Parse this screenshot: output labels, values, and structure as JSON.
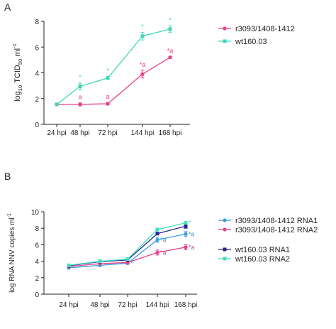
{
  "chart_data": [
    {
      "panel": "A",
      "type": "line",
      "categories": [
        "24 hpi",
        "48 hpi",
        "72 hpi",
        "144 hpi",
        "168 hpi"
      ],
      "ylabel_parts": {
        "pre": "log",
        "sub1": "10",
        "mid": " TCID",
        "sub2": "50",
        "post": " ml",
        "sup": "-1"
      },
      "ylim": [
        0,
        8
      ],
      "yticks": [
        0,
        2,
        4,
        6,
        8
      ],
      "series": [
        {
          "name": "r3093/1408-1412",
          "color": "#e6408a",
          "marker": "circle",
          "values": [
            1.55,
            1.55,
            1.6,
            3.9,
            5.2
          ],
          "errors": [
            0.08,
            0.12,
            0.1,
            0.3,
            0.08
          ],
          "annotations": [
            "",
            "a",
            "a",
            "*a",
            "*a"
          ]
        },
        {
          "name": "wt160.03",
          "color": "#3fd6b8",
          "marker": "square",
          "values": [
            1.55,
            2.95,
            3.6,
            6.85,
            7.4
          ],
          "errors": [
            0.05,
            0.25,
            0.12,
            0.3,
            0.25
          ],
          "annotations": [
            "",
            "*",
            "*",
            "*",
            "*"
          ]
        }
      ]
    },
    {
      "panel": "B",
      "type": "line",
      "categories": [
        "24 hpi",
        "48 hpi",
        "72 hpi",
        "144 hpi",
        "168 hpi"
      ],
      "ylabel_parts": {
        "pre": "log RNA NNV copies ml",
        "sup": "-1"
      },
      "ylim": [
        0,
        10
      ],
      "yticks": [
        0,
        2,
        4,
        6,
        8,
        10
      ],
      "series": [
        {
          "name": "r3093/1408-1412 RNA1",
          "color": "#3a9de0",
          "marker": "circle",
          "values": [
            3.2,
            3.5,
            3.75,
            6.6,
            7.3
          ],
          "errors": [
            0.08,
            0.08,
            0.1,
            0.3,
            0.3
          ],
          "annotations": [
            "",
            "",
            "*",
            "*a",
            "*a"
          ]
        },
        {
          "name": "r3093/1408-1412 RNA2",
          "color": "#e6408a",
          "marker": "circle",
          "values": [
            3.35,
            3.7,
            3.85,
            5.05,
            5.7
          ],
          "errors": [
            0.08,
            0.08,
            0.1,
            0.3,
            0.3
          ],
          "annotations": [
            "",
            "",
            "",
            "*a",
            "*a"
          ]
        },
        {
          "name": "wt160.03 RNA1",
          "color": "#26248a",
          "marker": "square",
          "values": [
            3.45,
            3.95,
            4.15,
            7.35,
            8.25
          ],
          "errors": [
            0.08,
            0.1,
            0.1,
            0.15,
            0.25
          ],
          "annotations": [
            "",
            "",
            "",
            "",
            ""
          ]
        },
        {
          "name": "wt160.03 RNA2",
          "color": "#3fe0c0",
          "marker": "square",
          "values": [
            3.5,
            4.0,
            4.25,
            7.85,
            8.65
          ],
          "errors": [
            0.08,
            0.08,
            0.1,
            0.15,
            0.15
          ],
          "annotations": [
            "",
            "",
            "",
            "*",
            "*"
          ]
        }
      ]
    }
  ]
}
